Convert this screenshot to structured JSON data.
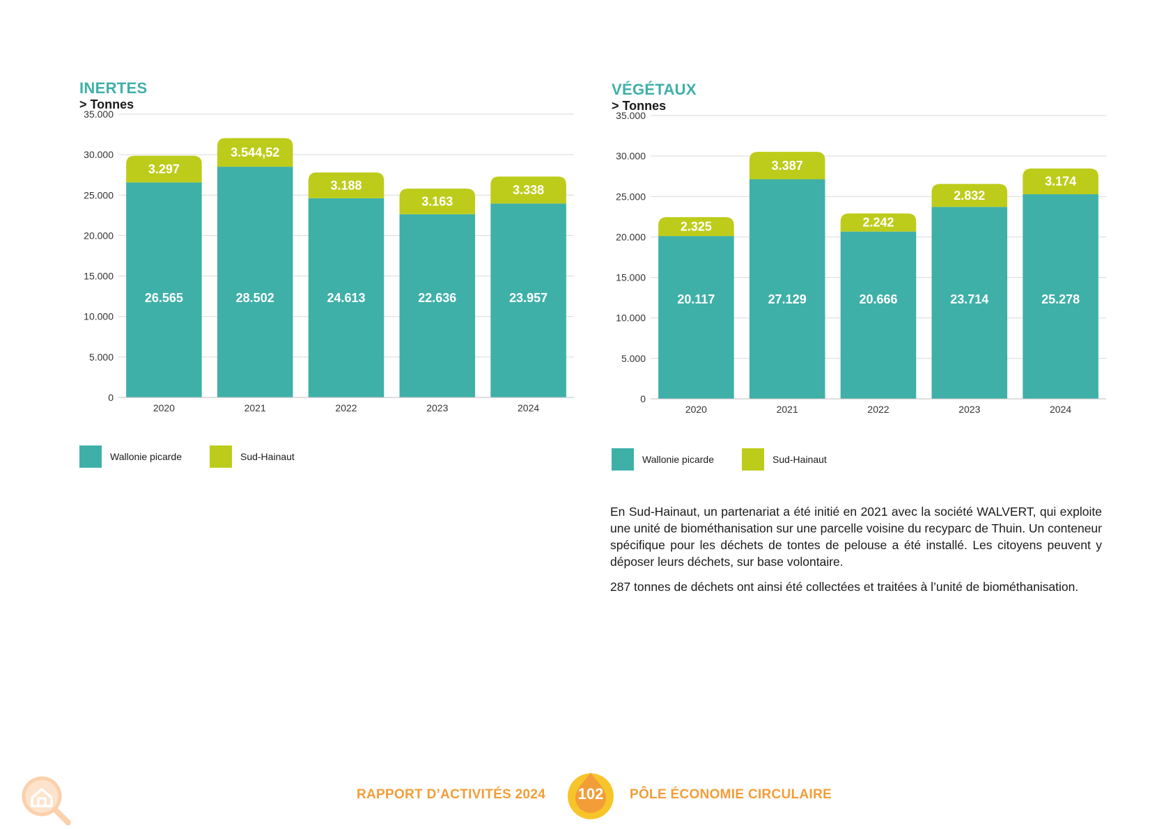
{
  "colors": {
    "accent_teal": "#3fb0a8",
    "accent_lime": "#bdcc1a",
    "footer_orange": "#f29d38",
    "badge_yellow": "#f7c42a"
  },
  "left_chart": {
    "title": "INERTES",
    "unit": "> Tonnes",
    "legend": [
      "Wallonie picarde",
      "Sud-Hainaut"
    ],
    "ytick_labels": [
      "35.000",
      "30.000",
      "25.000",
      "20.000",
      "15.000",
      "10.000",
      "5.000",
      "0"
    ],
    "value_labels": {
      "wallonie": [
        "26.565",
        "28.502",
        "24.613",
        "22.636",
        "23.957"
      ],
      "sud": [
        "3.297",
        "3.544,52",
        "3.188",
        "3.163",
        "3.338"
      ]
    }
  },
  "right_chart": {
    "title": "VÉGÉTAUX",
    "unit": "> Tonnes",
    "legend": [
      "Wallonie picarde",
      "Sud-Hainaut"
    ],
    "ytick_labels": [
      "35.000",
      "30.000",
      "25.000",
      "20.000",
      "15.000",
      "10.000",
      "5.000",
      "0"
    ],
    "value_labels": {
      "wallonie": [
        "20.117",
        "27.129",
        "20.666",
        "23.714",
        "25.278"
      ],
      "sud": [
        "2.325",
        "3.387",
        "2.242",
        "2.832",
        "3.174"
      ]
    }
  },
  "chart_data": [
    {
      "type": "bar",
      "stacked": true,
      "title": "INERTES",
      "ylabel": "> Tonnes",
      "categories": [
        "2020",
        "2021",
        "2022",
        "2023",
        "2024"
      ],
      "series": [
        {
          "name": "Wallonie picarde",
          "values": [
            26565,
            28502,
            24613,
            22636,
            23957
          ],
          "color": "#3fb0a8"
        },
        {
          "name": "Sud-Hainaut",
          "values": [
            3297,
            3544.52,
            3188,
            3163,
            3338
          ],
          "color": "#bdcc1a"
        }
      ],
      "ylim": [
        0,
        35000
      ],
      "yticks": [
        0,
        5000,
        10000,
        15000,
        20000,
        25000,
        30000,
        35000
      ],
      "grid": true,
      "legend_position": "bottom-left"
    },
    {
      "type": "bar",
      "stacked": true,
      "title": "VÉGÉTAUX",
      "ylabel": "> Tonnes",
      "categories": [
        "2020",
        "2021",
        "2022",
        "2023",
        "2024"
      ],
      "series": [
        {
          "name": "Wallonie picarde",
          "values": [
            20117,
            27129,
            20666,
            23714,
            25278
          ],
          "color": "#3fb0a8"
        },
        {
          "name": "Sud-Hainaut",
          "values": [
            2325,
            3387,
            2242,
            2832,
            3174
          ],
          "color": "#bdcc1a"
        }
      ],
      "ylim": [
        0,
        35000
      ],
      "yticks": [
        0,
        5000,
        10000,
        15000,
        20000,
        25000,
        30000,
        35000
      ],
      "grid": true,
      "legend_position": "bottom-left"
    }
  ],
  "text": {
    "para1": "En Sud-Hainaut, un partenariat a été initié en 2021 avec la société WALVERT, qui exploite une unité de biométhanisation sur une parcelle voisine du recyparc de Thuin. Un conteneur spécifique pour les déchets de tontes de pelouse a été installé. Les citoyens peuvent y déposer leurs déchets, sur base volontaire.",
    "para2": "287 tonnes de déchets ont ainsi été collectées et traitées à l’unité de biométhanisation."
  },
  "footer": {
    "left": "RAPPORT D’ACTIVITÉS 2024",
    "page": "102",
    "right": "PÔLE ÉCONOMIE CIRCULAIRE",
    "icon": "home-search-icon"
  }
}
